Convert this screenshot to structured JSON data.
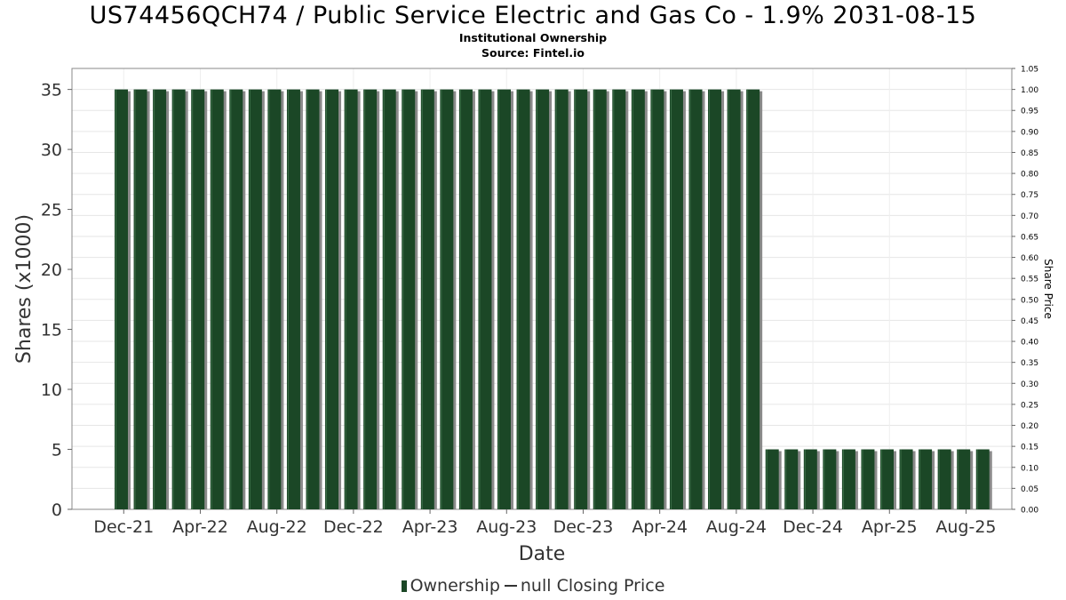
{
  "chart_data": {
    "type": "bar",
    "title": "US74456QCH74 / Public Service Electric and Gas Co - 1.9% 2031-08-15",
    "subtitle": "Institutional Ownership",
    "source": "Source: Fintel.io",
    "xlabel": "Date",
    "ylabel": "Shares (x1000)",
    "y2label": "Share Price",
    "ylim": [
      0,
      36.75
    ],
    "y2lim": [
      0,
      1.05
    ],
    "yticks": [
      0,
      5,
      10,
      15,
      20,
      25,
      30,
      35
    ],
    "y2ticks": [
      "0.00",
      "0.05",
      "0.10",
      "0.15",
      "0.20",
      "0.25",
      "0.30",
      "0.35",
      "0.40",
      "0.45",
      "0.50",
      "0.55",
      "0.60",
      "0.65",
      "0.70",
      "0.75",
      "0.80",
      "0.85",
      "0.90",
      "0.95",
      "1.00",
      "1.05"
    ],
    "xtick_labels": [
      "Dec-21",
      "Apr-22",
      "Aug-22",
      "Dec-22",
      "Apr-23",
      "Aug-23",
      "Dec-23",
      "Apr-24",
      "Aug-24",
      "Dec-24",
      "Apr-25",
      "Aug-25"
    ],
    "grid": true,
    "legend_position": "bottom-center",
    "series": [
      {
        "name": "Ownership",
        "color": "#1b4726",
        "values": [
          35,
          35,
          35,
          35,
          35,
          35,
          35,
          35,
          35,
          35,
          35,
          35,
          35,
          35,
          35,
          35,
          35,
          35,
          35,
          35,
          35,
          35,
          35,
          35,
          35,
          35,
          35,
          35,
          35,
          35,
          35,
          35,
          35,
          35,
          5,
          5,
          5,
          5,
          5,
          5,
          5,
          5,
          5,
          5,
          5,
          5
        ]
      }
    ],
    "legend": {
      "bar_label": "Ownership",
      "line_label": "null Closing Price"
    }
  }
}
